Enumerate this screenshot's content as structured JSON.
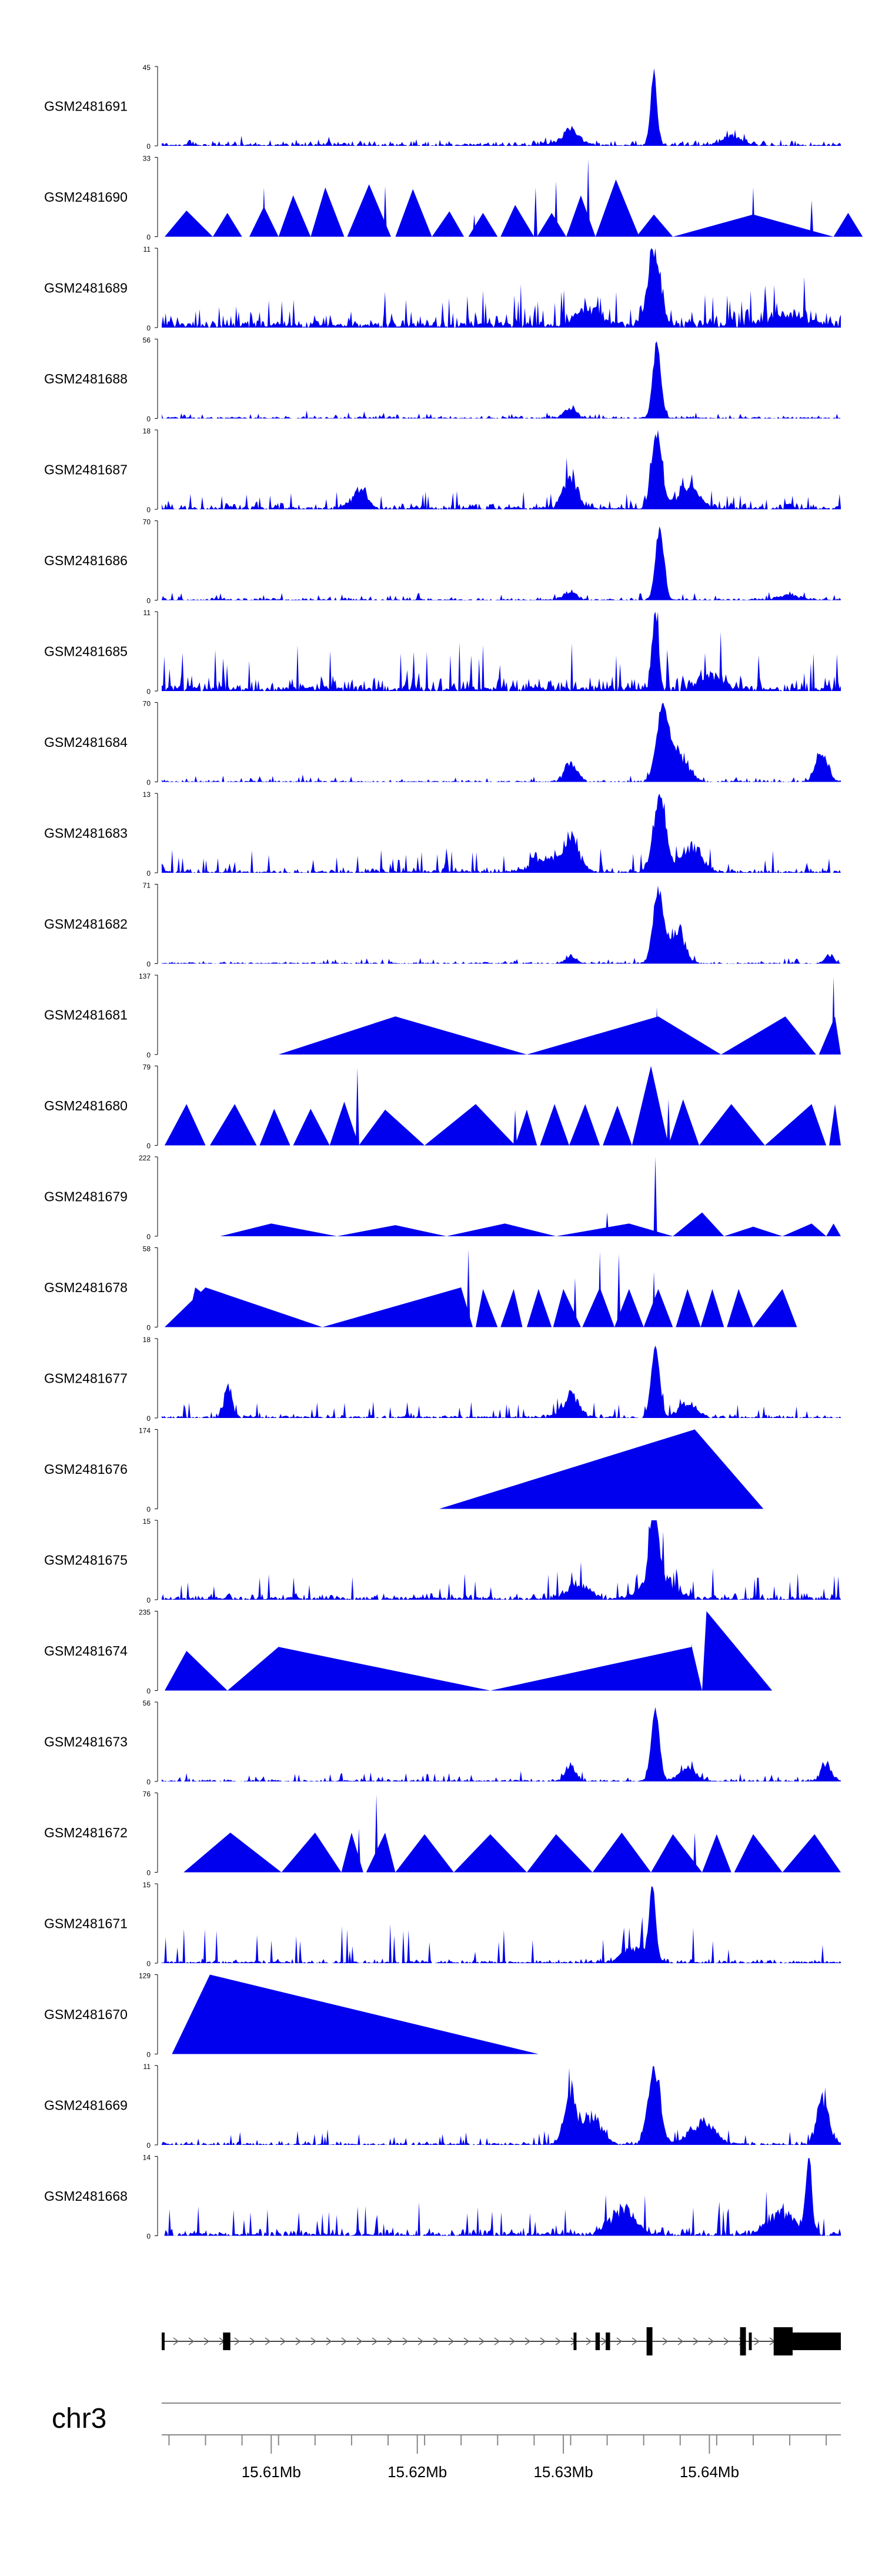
{
  "chart_data": {
    "type": "area",
    "title": "",
    "genome": {
      "chromosome": "chr3",
      "start_mb": 15.6025,
      "end_mb": 15.649,
      "axis_ticks": [
        {
          "value": 15.61,
          "label": "15.61Mb"
        },
        {
          "value": 15.62,
          "label": "15.62Mb"
        },
        {
          "value": 15.63,
          "label": "15.63Mb"
        },
        {
          "value": 15.64,
          "label": "15.64Mb"
        }
      ]
    },
    "colors": {
      "signal": "#0000ee",
      "gene": "#000000",
      "axis": "#888888",
      "text": "#000000"
    },
    "gene_model": {
      "strand": "+",
      "exons": [
        {
          "start": 15.6025,
          "end": 15.6027,
          "tall": false
        },
        {
          "start": 15.6067,
          "end": 15.6072,
          "tall": false
        },
        {
          "start": 15.6307,
          "end": 15.6309,
          "tall": false
        },
        {
          "start": 15.6322,
          "end": 15.6325,
          "tall": false
        },
        {
          "start": 15.6329,
          "end": 15.6332,
          "tall": false
        },
        {
          "start": 15.6357,
          "end": 15.6361,
          "tall": true
        },
        {
          "start": 15.6421,
          "end": 15.6425,
          "tall": true
        },
        {
          "start": 15.6427,
          "end": 15.6429,
          "tall": false
        },
        {
          "start": 15.6444,
          "end": 15.6457,
          "tall": true
        },
        {
          "start": 15.6457,
          "end": 15.649,
          "tall": false
        }
      ]
    },
    "series": [
      {
        "name": "GSM2481691",
        "ymin": "0",
        "ymax": "45",
        "max": 45,
        "peak": 15.6362,
        "peak_width": 0.0003,
        "base": 0.06,
        "noise": 0.05,
        "enrich": [
          [
            15.6305,
            0.0009,
            0.22
          ],
          [
            15.6415,
            0.0009,
            0.14
          ]
        ],
        "jitter": 0.06
      },
      {
        "name": "GSM2481690",
        "ymin": "0",
        "ymax": "33",
        "max": 33,
        "tris": [
          [
            15.6027,
            15.6042,
            15.606,
            0.33
          ],
          [
            15.606,
            15.607,
            15.608,
            0.3
          ],
          [
            15.6085,
            15.6095,
            15.6105,
            0.38
          ],
          [
            15.6105,
            15.6115,
            15.6127,
            0.52
          ],
          [
            15.6127,
            15.6137,
            15.615,
            0.62
          ],
          [
            15.6152,
            15.6167,
            15.6182,
            0.66
          ],
          [
            15.6185,
            15.6197,
            15.621,
            0.6
          ],
          [
            15.621,
            15.6222,
            15.6232,
            0.32
          ],
          [
            15.6235,
            15.6245,
            15.6255,
            0.3
          ],
          [
            15.6257,
            15.6267,
            15.628,
            0.4
          ],
          [
            15.6282,
            15.6292,
            15.6302,
            0.3
          ],
          [
            15.6302,
            15.6312,
            15.6322,
            0.52
          ],
          [
            15.6322,
            15.6336,
            15.6352,
            0.72
          ],
          [
            15.635,
            15.6362,
            15.6375,
            0.28
          ],
          [
            15.6375,
            15.643,
            15.6485,
            0.28
          ],
          [
            15.6485,
            15.6495,
            15.6505,
            0.3
          ]
        ],
        "spikes": [
          [
            15.6095,
            0.62
          ],
          [
            15.6178,
            0.64
          ],
          [
            15.6239,
            0.28
          ],
          [
            15.6281,
            0.62
          ],
          [
            15.6295,
            0.7
          ],
          [
            15.6317,
            0.98
          ],
          [
            15.643,
            0.62
          ],
          [
            15.647,
            0.46
          ]
        ]
      },
      {
        "name": "GSM2481689",
        "ymin": "0",
        "ymax": "11",
        "max": 11,
        "peak": 15.6362,
        "peak_width": 0.0006,
        "base": 0.22,
        "noise": 0.33,
        "enrich": [
          [
            15.6318,
            0.0012,
            0.28
          ],
          [
            15.6455,
            0.0016,
            0.18
          ]
        ],
        "jitter": 0.12
      },
      {
        "name": "GSM2481688",
        "ymin": "0",
        "ymax": "56",
        "max": 56,
        "peak": 15.6364,
        "peak_width": 0.0004,
        "base": 0.03,
        "noise": 0.05,
        "enrich": [
          [
            15.6305,
            0.0006,
            0.16
          ]
        ],
        "jitter": 0.06
      },
      {
        "name": "GSM2481687",
        "ymin": "0",
        "ymax": "18",
        "max": 18,
        "peak": 15.6364,
        "peak_width": 0.0005,
        "base": 0.08,
        "noise": 0.14,
        "enrich": [
          [
            15.6305,
            0.0007,
            0.55
          ],
          [
            15.6385,
            0.001,
            0.35
          ],
          [
            15.616,
            0.0007,
            0.3
          ]
        ],
        "jitter": 0.1
      },
      {
        "name": "GSM2481686",
        "ymin": "0",
        "ymax": "70",
        "max": 70,
        "peak": 15.6366,
        "peak_width": 0.0004,
        "base": 0.03,
        "noise": 0.06,
        "enrich": [
          [
            15.6305,
            0.0006,
            0.14
          ],
          [
            15.6455,
            0.001,
            0.08
          ]
        ],
        "jitter": 0.06
      },
      {
        "name": "GSM2481685",
        "ymin": "0",
        "ymax": "11",
        "max": 11,
        "peak": 15.6363,
        "peak_width": 0.0003,
        "base": 0.18,
        "noise": 0.4,
        "enrich": [
          [
            15.64,
            0.001,
            0.25
          ]
        ],
        "jitter": 0.15
      },
      {
        "name": "GSM2481684",
        "ymin": "0",
        "ymax": "70",
        "max": 70,
        "peak": 15.6368,
        "peak_width": 0.0006,
        "base": 0.02,
        "noise": 0.05,
        "enrich": [
          [
            15.6305,
            0.0006,
            0.3
          ],
          [
            15.6477,
            0.0006,
            0.45
          ],
          [
            15.638,
            0.0008,
            0.45
          ]
        ],
        "jitter": 0.08
      },
      {
        "name": "GSM2481683",
        "ymin": "0",
        "ymax": "13",
        "max": 13,
        "peak": 15.6366,
        "peak_width": 0.0006,
        "base": 0.06,
        "noise": 0.2,
        "enrich": [
          [
            15.6305,
            0.0008,
            0.55
          ],
          [
            15.6388,
            0.001,
            0.4
          ],
          [
            15.6285,
            0.001,
            0.25
          ]
        ],
        "jitter": 0.1
      },
      {
        "name": "GSM2481682",
        "ymin": "0",
        "ymax": "71",
        "max": 71,
        "peak": 15.6365,
        "peak_width": 0.0005,
        "base": 0.02,
        "noise": 0.04,
        "enrich": [
          [
            15.6305,
            0.0005,
            0.12
          ],
          [
            15.6378,
            0.0007,
            0.55
          ],
          [
            15.6482,
            0.0004,
            0.15
          ]
        ],
        "jitter": 0.06
      },
      {
        "name": "GSM2481681",
        "ymin": "0",
        "ymax": "137",
        "max": 137,
        "tris": [
          [
            15.6105,
            15.6185,
            15.6275,
            0.48
          ],
          [
            15.6275,
            15.6365,
            15.6408,
            0.48
          ],
          [
            15.6408,
            15.6452,
            15.6473,
            0.48
          ],
          [
            15.6475,
            15.6486,
            15.649,
            0.48
          ]
        ],
        "spikes": [
          [
            15.6485,
            0.98
          ],
          [
            15.6364,
            0.6
          ]
        ]
      },
      {
        "name": "GSM2481680",
        "ymin": "0",
        "ymax": "79",
        "max": 79,
        "tris": [
          [
            15.6027,
            15.6042,
            15.6055,
            0.52
          ],
          [
            15.6058,
            15.6075,
            15.609,
            0.52
          ],
          [
            15.6092,
            15.6102,
            15.6113,
            0.46
          ],
          [
            15.6115,
            15.6127,
            15.614,
            0.46
          ],
          [
            15.614,
            15.615,
            15.616,
            0.55
          ],
          [
            15.616,
            15.6178,
            15.6205,
            0.45
          ],
          [
            15.6205,
            15.624,
            15.6267,
            0.52
          ],
          [
            15.6267,
            15.6275,
            15.6282,
            0.45
          ],
          [
            15.6284,
            15.6294,
            15.6304,
            0.52
          ],
          [
            15.6304,
            15.6315,
            15.6325,
            0.52
          ],
          [
            15.6327,
            15.6337,
            15.6347,
            0.5
          ],
          [
            15.6347,
            15.636,
            15.6372,
            1.0
          ],
          [
            15.6372,
            15.6382,
            15.6393,
            0.58
          ],
          [
            15.6393,
            15.6415,
            15.6438,
            0.52
          ],
          [
            15.6438,
            15.647,
            15.648,
            0.52
          ],
          [
            15.6482,
            15.6486,
            15.649,
            0.52
          ]
        ],
        "spikes": [
          [
            15.6159,
            0.98
          ],
          [
            15.6267,
            0.45
          ],
          [
            15.6372,
            0.58
          ]
        ]
      },
      {
        "name": "GSM2481679",
        "ymin": "0",
        "ymax": "222",
        "max": 222,
        "tris": [
          [
            15.6065,
            15.61,
            15.6145,
            0.16
          ],
          [
            15.6145,
            15.6185,
            15.622,
            0.14
          ],
          [
            15.622,
            15.626,
            15.6295,
            0.16
          ],
          [
            15.6295,
            15.6345,
            15.6375,
            0.16
          ],
          [
            15.6375,
            15.6395,
            15.641,
            0.3
          ],
          [
            15.641,
            15.643,
            15.645,
            0.12
          ],
          [
            15.645,
            15.647,
            15.648,
            0.16
          ],
          [
            15.648,
            15.6485,
            15.649,
            0.16
          ]
        ],
        "spikes": [
          [
            15.633,
            0.3
          ],
          [
            15.6363,
            1.0
          ]
        ]
      },
      {
        "name": "GSM2481678",
        "ymin": "0",
        "ymax": "58",
        "max": 58,
        "tris": [
          [
            15.6042,
            15.6048,
            15.6082,
            0.5
          ],
          [
            15.6027,
            15.6055,
            15.6135,
            0.5
          ],
          [
            15.6135,
            15.623,
            15.6238,
            0.5
          ],
          [
            15.624,
            15.6245,
            15.6255,
            0.48
          ],
          [
            15.6257,
            15.6266,
            15.6272,
            0.48
          ],
          [
            15.6275,
            15.6283,
            15.6292,
            0.48
          ],
          [
            15.6293,
            15.63,
            15.6312,
            0.48
          ],
          [
            15.6313,
            15.6325,
            15.6335,
            0.5
          ],
          [
            15.6335,
            15.6345,
            15.6355,
            0.48
          ],
          [
            15.6355,
            15.6365,
            15.6375,
            0.48
          ],
          [
            15.6377,
            15.6385,
            15.6394,
            0.48
          ],
          [
            15.6394,
            15.6402,
            15.641,
            0.48
          ],
          [
            15.6412,
            15.642,
            15.643,
            0.48
          ],
          [
            15.643,
            15.645,
            15.646,
            0.48
          ]
        ],
        "spikes": [
          [
            15.6235,
            0.98
          ],
          [
            15.6308,
            0.62
          ],
          [
            15.6325,
            0.95
          ],
          [
            15.6338,
            0.92
          ],
          [
            15.6362,
            0.7
          ]
        ]
      },
      {
        "name": "GSM2481677",
        "ymin": "0",
        "ymax": "18",
        "max": 18,
        "peak": 15.6363,
        "peak_width": 0.0004,
        "base": 0.04,
        "noise": 0.14,
        "enrich": [
          [
            15.6305,
            0.0008,
            0.35
          ],
          [
            15.607,
            0.0004,
            0.45
          ],
          [
            15.6385,
            0.0008,
            0.25
          ]
        ],
        "jitter": 0.1
      },
      {
        "name": "GSM2481676",
        "ymin": "0",
        "ymax": "174",
        "max": 174,
        "tris": [
          [
            15.6215,
            15.639,
            15.6437,
            1.0
          ]
        ],
        "spikes": []
      },
      {
        "name": "GSM2481675",
        "ymin": "0",
        "ymax": "15",
        "max": 15,
        "peak": 15.6362,
        "peak_width": 0.0004,
        "base": 0.08,
        "noise": 0.24,
        "enrich": [
          [
            15.6365,
            0.0014,
            0.4
          ],
          [
            15.631,
            0.001,
            0.25
          ]
        ],
        "jitter": 0.1
      },
      {
        "name": "GSM2481674",
        "ymin": "0",
        "ymax": "235",
        "max": 235,
        "tris": [
          [
            15.6027,
            15.6042,
            15.607,
            0.5
          ],
          [
            15.607,
            15.6105,
            15.625,
            0.55
          ],
          [
            15.625,
            15.6388,
            15.6395,
            0.55
          ],
          [
            15.6395,
            15.6398,
            15.6443,
            1.0
          ]
        ],
        "spikes": [
          [
            15.6388,
            0.6
          ]
        ]
      },
      {
        "name": "GSM2481673",
        "ymin": "0",
        "ymax": "56",
        "max": 56,
        "peak": 15.6363,
        "peak_width": 0.0004,
        "base": 0.03,
        "noise": 0.08,
        "enrich": [
          [
            15.6305,
            0.0005,
            0.25
          ],
          [
            15.648,
            0.0005,
            0.3
          ],
          [
            15.6385,
            0.0008,
            0.2
          ]
        ],
        "jitter": 0.06
      },
      {
        "name": "GSM2481672",
        "ymin": "0",
        "ymax": "76",
        "max": 76,
        "tris": [
          [
            15.604,
            15.6072,
            15.6107,
            0.5
          ],
          [
            15.6107,
            15.613,
            15.6148,
            0.5
          ],
          [
            15.6148,
            15.6155,
            15.6163,
            0.5
          ],
          [
            15.6165,
            15.6178,
            15.6185,
            0.5
          ],
          [
            15.6185,
            15.6205,
            15.6225,
            0.48
          ],
          [
            15.6225,
            15.625,
            15.6275,
            0.48
          ],
          [
            15.6275,
            15.6295,
            15.632,
            0.48
          ],
          [
            15.632,
            15.634,
            15.636,
            0.5
          ],
          [
            15.636,
            15.6375,
            15.6395,
            0.48
          ],
          [
            15.6395,
            15.6405,
            15.6415,
            0.48
          ],
          [
            15.6417,
            15.643,
            15.645,
            0.48
          ],
          [
            15.645,
            15.6472,
            15.649,
            0.48
          ]
        ],
        "spikes": [
          [
            15.6172,
            0.98
          ],
          [
            15.616,
            0.55
          ],
          [
            15.639,
            0.5
          ]
        ]
      },
      {
        "name": "GSM2481671",
        "ymin": "0",
        "ymax": "15",
        "max": 15,
        "peak": 15.6361,
        "peak_width": 0.0003,
        "base": 0.05,
        "noise": 0.33,
        "enrich": [
          [
            15.635,
            0.0012,
            0.25
          ]
        ],
        "jitter": 0.1
      },
      {
        "name": "GSM2481670",
        "ymin": "0",
        "ymax": "129",
        "max": 129,
        "tris": [
          [
            15.6032,
            15.6058,
            15.6283,
            1.0
          ]
        ],
        "spikes": []
      },
      {
        "name": "GSM2481669",
        "ymin": "0",
        "ymax": "11",
        "max": 11,
        "peak": 15.6362,
        "peak_width": 0.0006,
        "base": 0.04,
        "noise": 0.12,
        "enrich": [
          [
            15.6305,
            0.0006,
            0.8
          ],
          [
            15.632,
            0.0009,
            0.45
          ],
          [
            15.6478,
            0.0006,
            0.75
          ],
          [
            15.6395,
            0.0012,
            0.35
          ]
        ],
        "jitter": 0.1
      },
      {
        "name": "GSM2481668",
        "ymin": "0",
        "ymax": "14",
        "max": 14,
        "peak": 15.6468,
        "peak_width": 0.0003,
        "base": 0.1,
        "noise": 0.28,
        "enrich": [
          [
            15.634,
            0.0012,
            0.4
          ],
          [
            15.645,
            0.0012,
            0.35
          ]
        ],
        "jitter": 0.12
      }
    ]
  }
}
